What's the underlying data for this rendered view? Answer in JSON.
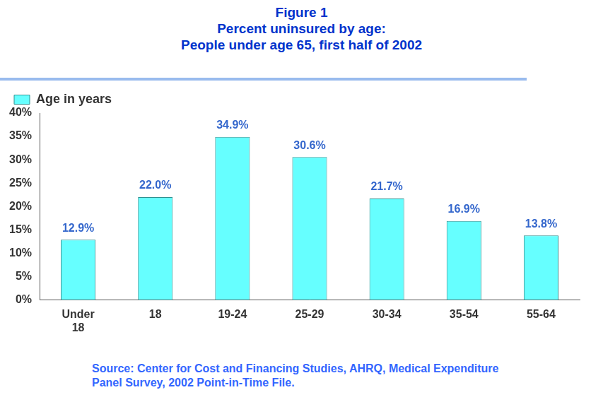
{
  "chart_data": {
    "type": "bar",
    "title": [
      "Figure 1",
      "Percent uninsured by age:",
      "People under age 65, first half of 2002"
    ],
    "categories": [
      "Under 18",
      "18",
      "19-24",
      "25-29",
      "30-34",
      "35-54",
      "55-64"
    ],
    "series": [
      {
        "name": "Age in years",
        "color": "#66ffff",
        "values": [
          12.9,
          22.0,
          34.9,
          30.6,
          21.7,
          16.9,
          13.8
        ],
        "value_labels": [
          "12.9%",
          "22.0%",
          "34.9%",
          "30.6%",
          "21.7%",
          "16.9%",
          "13.8%"
        ]
      }
    ],
    "ylim": [
      0,
      40
    ],
    "yticks": [
      {
        "value": 0,
        "label": "0%"
      },
      {
        "value": 5,
        "label": "5%"
      },
      {
        "value": 10,
        "label": "10%"
      },
      {
        "value": 15,
        "label": "15%"
      },
      {
        "value": 20,
        "label": "20%"
      },
      {
        "value": 25,
        "label": "25%"
      },
      {
        "value": 30,
        "label": "30%"
      },
      {
        "value": 35,
        "label": "35%"
      },
      {
        "value": 40,
        "label": "40%"
      }
    ],
    "grid": false,
    "legend": "upper left",
    "data_labels": true,
    "source": "Source: Center for Cost and Financing Studies, AHRQ, Medical Expenditure Panel Survey, 2002 Point-in-Time File."
  }
}
